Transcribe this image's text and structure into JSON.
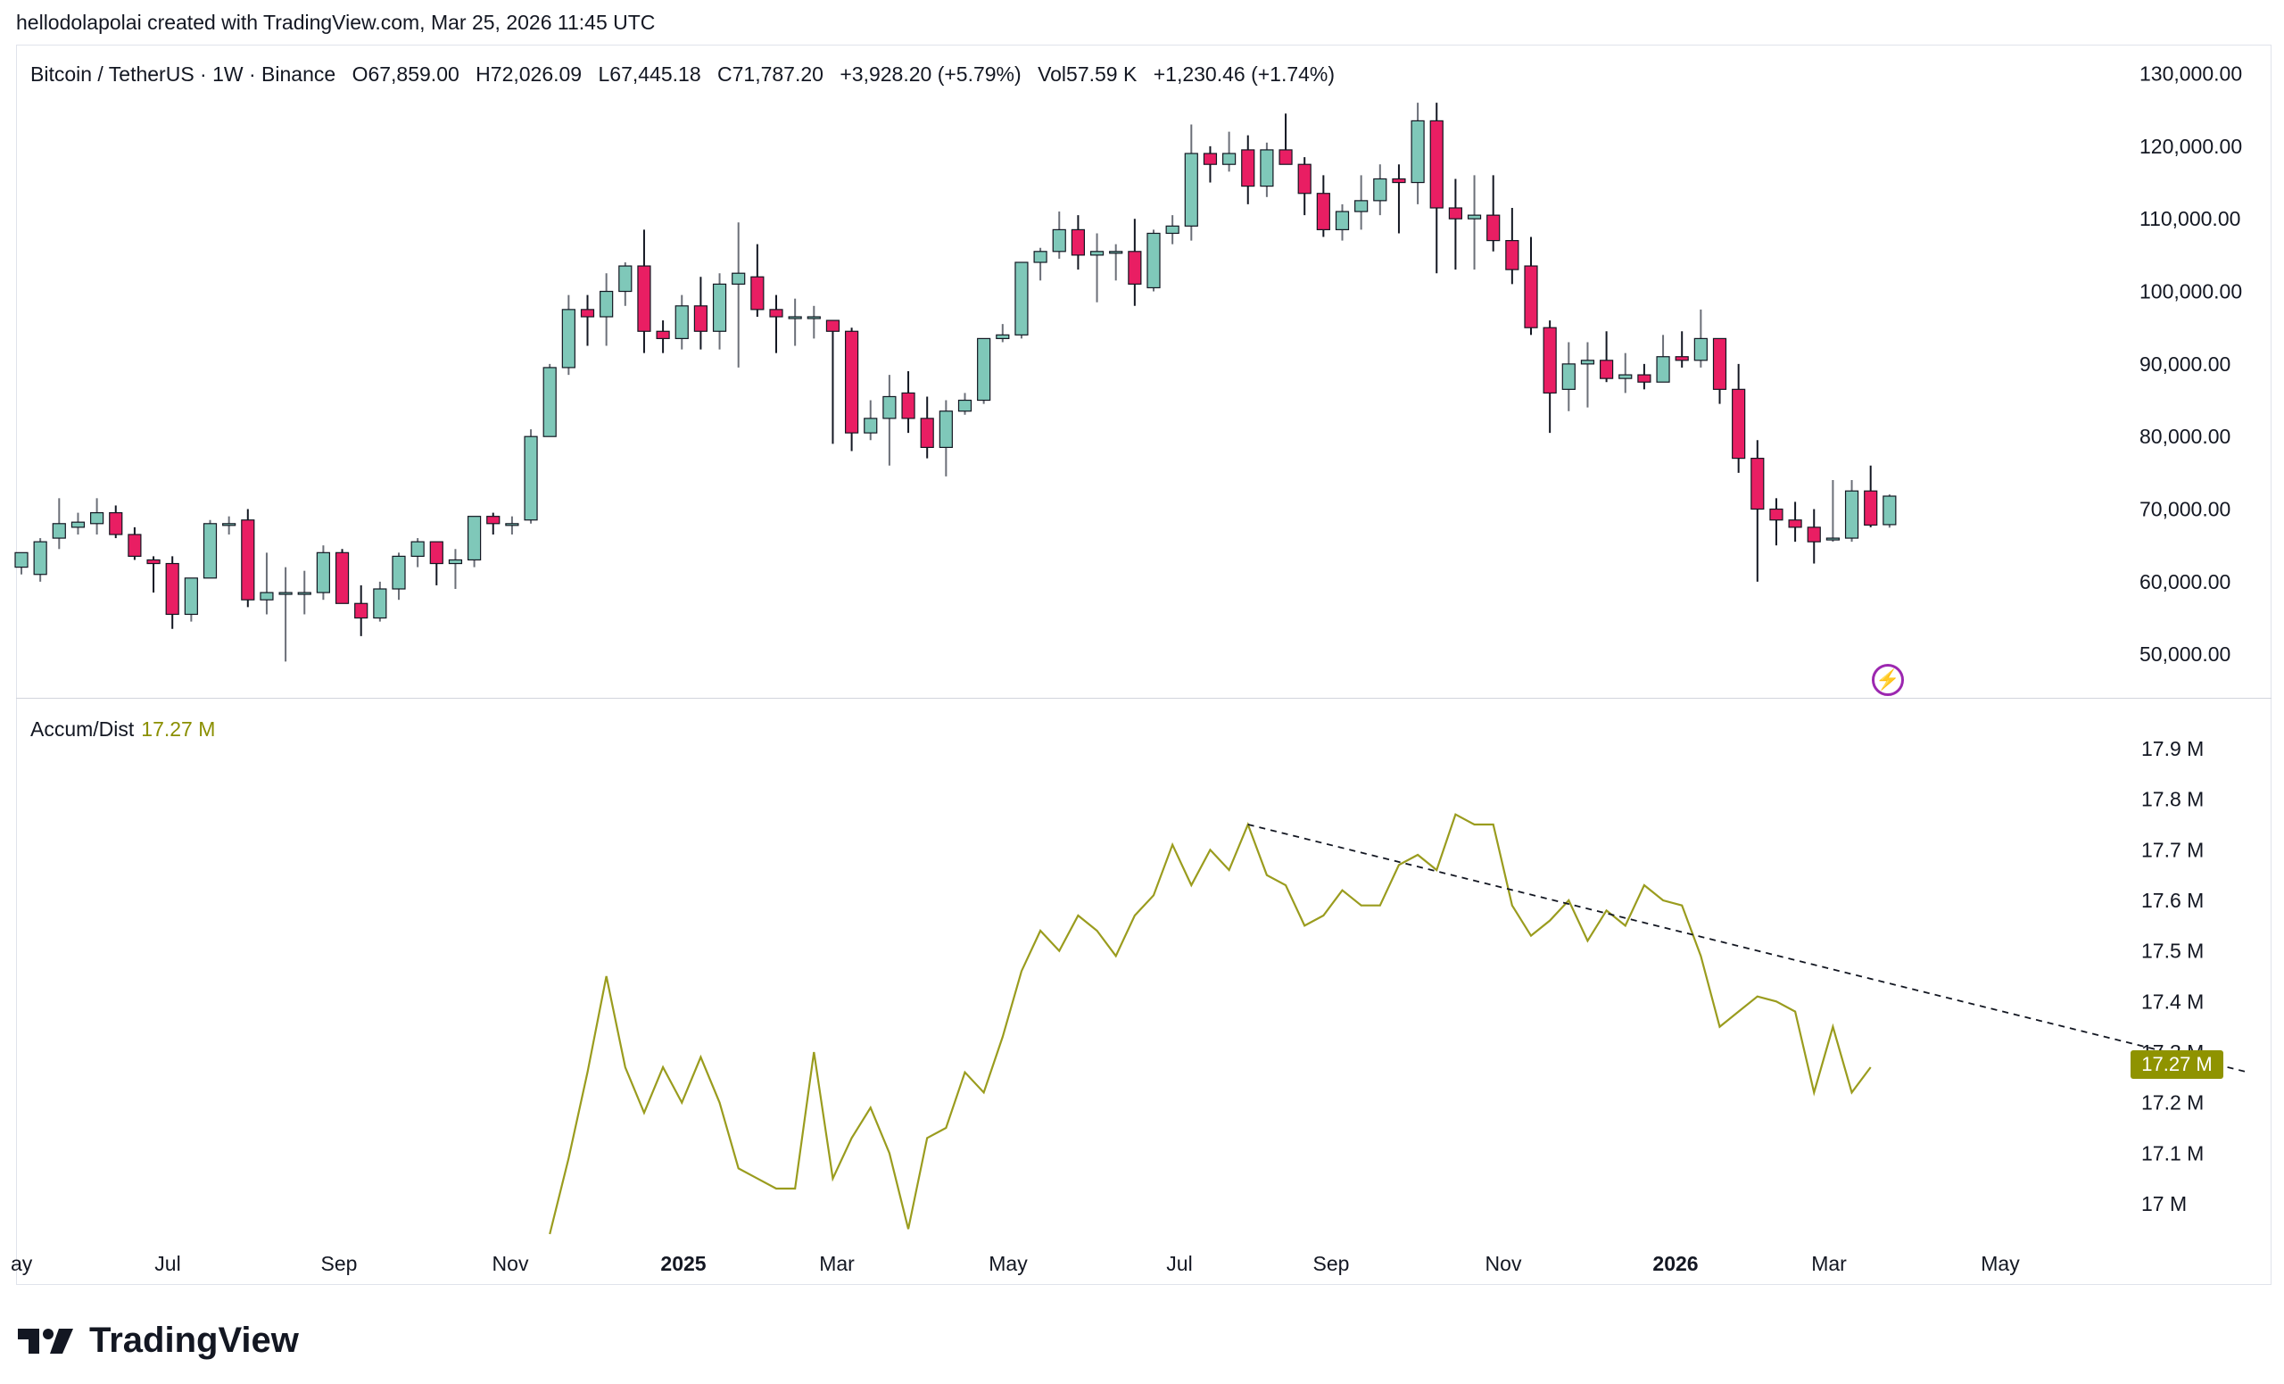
{
  "header": {
    "credit": "hellodolapolai created with TradingView.com, Mar 25, 2026 11:45 UTC"
  },
  "legend": {
    "symbol": "Bitcoin / TetherUS · 1W · Binance",
    "open": "O67,859.00",
    "high": "H72,026.09",
    "low": "L67,445.18",
    "close": "C71,787.20",
    "change": "+3,928.20 (+5.79%)",
    "volume": "Vol57.59 K",
    "vol_change": "+1,230.46 (+1.74%)"
  },
  "indicator": {
    "name": "Accum/Dist",
    "value": "17.27 M",
    "color": "#8f9300"
  },
  "colors": {
    "up": "#7fc8b9",
    "down": "#e91e63",
    "wick": "#131722",
    "ad_line": "#9a9c1e"
  },
  "logo": {
    "text": "TradingView"
  },
  "chart_data": [
    {
      "type": "candlestick",
      "title": "Bitcoin / TetherUS · 1W · Binance",
      "ylim": [
        44000,
        134000
      ],
      "y_ticks": [
        "130,000.00",
        "120,000.00",
        "110,000.00",
        "100,000.00",
        "90,000.00",
        "80,000.00",
        "70,000.00",
        "60,000.00",
        "50,000.00"
      ],
      "y_tick_values": [
        130000,
        120000,
        110000,
        100000,
        90000,
        80000,
        70000,
        60000,
        50000
      ],
      "x_ticks": [
        "ay",
        "Jul",
        "Sep",
        "Nov",
        "2025",
        "Mar",
        "May",
        "Jul",
        "Sep",
        "Nov",
        "2026",
        "Mar",
        "May"
      ],
      "candles": [
        [
          62000,
          64000,
          61000,
          64000
        ],
        [
          61000,
          66000,
          60000,
          65500
        ],
        [
          66000,
          71500,
          64500,
          68000
        ],
        [
          67500,
          69500,
          66500,
          68200
        ],
        [
          68000,
          71500,
          66500,
          69500
        ],
        [
          69500,
          70500,
          66000,
          66500
        ],
        [
          66500,
          67500,
          63000,
          63500
        ],
        [
          63000,
          63500,
          58500,
          62500
        ],
        [
          62500,
          63500,
          53500,
          55500
        ],
        [
          55500,
          60500,
          54500,
          60500
        ],
        [
          60500,
          68500,
          60500,
          68000
        ],
        [
          68000,
          69000,
          66500,
          68000
        ],
        [
          68500,
          70000,
          56500,
          57500
        ],
        [
          57500,
          64000,
          55500,
          58500
        ],
        [
          58500,
          62000,
          49000,
          58500
        ],
        [
          58500,
          61500,
          55500,
          58500
        ],
        [
          58500,
          65000,
          57500,
          64000
        ],
        [
          64000,
          64500,
          57000,
          57000
        ],
        [
          57000,
          59500,
          52500,
          55000
        ],
        [
          55000,
          60000,
          54500,
          59000
        ],
        [
          59000,
          64000,
          57500,
          63500
        ],
        [
          63500,
          66000,
          62000,
          65500
        ],
        [
          65500,
          65500,
          59500,
          62500
        ],
        [
          62500,
          64500,
          59000,
          63000
        ],
        [
          63000,
          69000,
          62000,
          69000
        ],
        [
          69000,
          69500,
          66500,
          68000
        ],
        [
          68000,
          69000,
          66500,
          68000
        ],
        [
          68500,
          81000,
          68000,
          80000
        ],
        [
          80000,
          90000,
          80000,
          89500
        ],
        [
          89500,
          99500,
          88500,
          97500
        ],
        [
          97500,
          99500,
          92500,
          96500
        ],
        [
          96500,
          102500,
          92500,
          100000
        ],
        [
          100000,
          104000,
          98000,
          103500
        ],
        [
          103500,
          108500,
          91500,
          94500
        ],
        [
          94500,
          96000,
          91500,
          93500
        ],
        [
          93500,
          99500,
          92000,
          98000
        ],
        [
          98000,
          102000,
          92000,
          94500
        ],
        [
          94500,
          102500,
          92000,
          101000
        ],
        [
          101000,
          109500,
          89500,
          102500
        ],
        [
          102000,
          106500,
          96500,
          97500
        ],
        [
          97500,
          99500,
          91500,
          96500
        ],
        [
          96500,
          99000,
          92500,
          96500
        ],
        [
          96500,
          98000,
          93500,
          96500
        ],
        [
          96000,
          96000,
          79000,
          94500
        ],
        [
          94500,
          95000,
          78000,
          80500
        ],
        [
          80500,
          85000,
          79500,
          82500
        ],
        [
          82500,
          88500,
          76000,
          85500
        ],
        [
          86000,
          89000,
          80500,
          82500
        ],
        [
          82500,
          85500,
          77000,
          78500
        ],
        [
          78500,
          85000,
          74500,
          83500
        ],
        [
          83500,
          86000,
          83000,
          85000
        ],
        [
          85000,
          93500,
          84500,
          93500
        ],
        [
          93500,
          95500,
          93000,
          94000
        ],
        [
          94000,
          104000,
          93500,
          104000
        ],
        [
          104000,
          106000,
          101500,
          105500
        ],
        [
          105500,
          111000,
          104500,
          108500
        ],
        [
          108500,
          110500,
          103000,
          105000
        ],
        [
          105000,
          108000,
          98500,
          105500
        ],
        [
          105500,
          106500,
          101500,
          105500
        ],
        [
          105500,
          110000,
          98000,
          101000
        ],
        [
          100500,
          108500,
          100000,
          108000
        ],
        [
          108000,
          110500,
          106500,
          109000
        ],
        [
          109000,
          123000,
          107000,
          119000
        ],
        [
          119000,
          120000,
          115000,
          117500
        ],
        [
          117500,
          122000,
          116500,
          119000
        ],
        [
          119500,
          121500,
          112000,
          114500
        ],
        [
          114500,
          120500,
          113000,
          119500
        ],
        [
          119500,
          124500,
          117500,
          117500
        ],
        [
          117500,
          118500,
          110500,
          113500
        ],
        [
          113500,
          116000,
          107500,
          108500
        ],
        [
          108500,
          112000,
          107000,
          111000
        ],
        [
          111000,
          116000,
          108500,
          112500
        ],
        [
          112500,
          117500,
          110500,
          115500
        ],
        [
          115500,
          117500,
          108000,
          115000
        ],
        [
          115000,
          126000,
          112000,
          123500
        ],
        [
          123500,
          126000,
          102500,
          111500
        ],
        [
          111500,
          115500,
          103000,
          110000
        ],
        [
          110000,
          116000,
          103000,
          110500
        ],
        [
          110500,
          116000,
          105500,
          107000
        ],
        [
          107000,
          111500,
          101000,
          103000
        ],
        [
          103500,
          107500,
          94000,
          95000
        ],
        [
          95000,
          96000,
          80500,
          86000
        ],
        [
          86500,
          93000,
          83500,
          90000
        ],
        [
          90000,
          93000,
          84000,
          90500
        ],
        [
          90500,
          94500,
          87500,
          88000
        ],
        [
          88000,
          91500,
          86000,
          88500
        ],
        [
          88500,
          90000,
          86500,
          87500
        ],
        [
          87500,
          94000,
          87500,
          91000
        ],
        [
          91000,
          94500,
          89500,
          90500
        ],
        [
          90500,
          97500,
          89500,
          93500
        ],
        [
          93500,
          93500,
          84500,
          86500
        ],
        [
          86500,
          90000,
          75000,
          77000
        ],
        [
          77000,
          79500,
          60000,
          70000
        ],
        [
          70000,
          71500,
          65000,
          68500
        ],
        [
          68500,
          71000,
          65500,
          67500
        ],
        [
          67500,
          70000,
          62500,
          65500
        ],
        [
          66000,
          74000,
          65500,
          66000
        ],
        [
          66000,
          74000,
          65500,
          72500
        ],
        [
          72500,
          76000,
          67500,
          67800
        ],
        [
          67859,
          72026,
          67445,
          71787
        ]
      ]
    },
    {
      "type": "line",
      "title": "Accum/Dist",
      "ylim": [
        16.91,
        17.99
      ],
      "y_ticks": [
        "17.9 M",
        "17.8 M",
        "17.7 M",
        "17.6 M",
        "17.5 M",
        "17.4 M",
        "17.3 M",
        "17.2 M",
        "17.1 M",
        "17 M"
      ],
      "y_tick_values": [
        17.9,
        17.8,
        17.7,
        17.6,
        17.5,
        17.4,
        17.3,
        17.2,
        17.1,
        17.0
      ],
      "last_value": "17.27 M",
      "start_index": 28,
      "values": [
        16.94,
        17.09,
        17.26,
        17.45,
        17.27,
        17.18,
        17.27,
        17.2,
        17.29,
        17.2,
        17.07,
        17.05,
        17.03,
        17.03,
        17.3,
        17.05,
        17.13,
        17.19,
        17.1,
        16.95,
        17.13,
        17.15,
        17.26,
        17.22,
        17.33,
        17.46,
        17.54,
        17.5,
        17.57,
        17.54,
        17.49,
        17.57,
        17.61,
        17.71,
        17.63,
        17.7,
        17.66,
        17.75,
        17.65,
        17.63,
        17.55,
        17.57,
        17.62,
        17.59,
        17.59,
        17.67,
        17.69,
        17.66,
        17.77,
        17.75,
        17.75,
        17.59,
        17.53,
        17.56,
        17.6,
        17.52,
        17.58,
        17.55,
        17.63,
        17.6,
        17.59,
        17.49,
        17.35,
        17.38,
        17.41,
        17.4,
        17.38,
        17.22,
        17.35,
        17.22,
        17.27
      ],
      "trendline": {
        "from_index": 65,
        "from_value": 17.75,
        "to_index": 118,
        "to_value": 17.26,
        "style": "dashed"
      }
    }
  ]
}
